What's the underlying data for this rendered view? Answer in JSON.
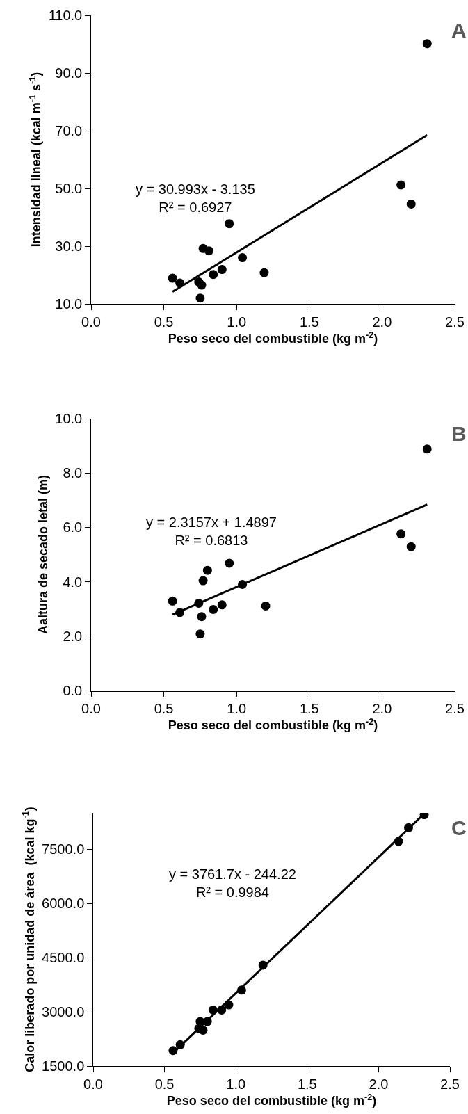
{
  "chart_data": [
    {
      "type": "scatter",
      "xlabel": "Peso seco del combustible (kg m$^{-2}$)",
      "ylabel": "Intensidad lineal (kcal m$^{-1}$ s$^{-1}$)",
      "xlim": [
        0,
        2.5
      ],
      "xticks": [
        {
          "value": 0,
          "label": "0.0"
        },
        {
          "value": 0.5,
          "label": "0.5"
        },
        {
          "value": 1,
          "label": "1.0"
        },
        {
          "value": 1.5,
          "label": "1.5"
        },
        {
          "value": 2,
          "label": "2.0"
        },
        {
          "value": 2.5,
          "label": "2.5"
        }
      ],
      "ylim": [
        10,
        110
      ],
      "yticks": [
        {
          "value": 10,
          "label": "10.0"
        },
        {
          "value": 30,
          "label": "30.0"
        },
        {
          "value": 50,
          "label": "50.0"
        },
        {
          "value": 70,
          "label": "70.0"
        },
        {
          "value": 90,
          "label": "90.0"
        },
        {
          "value": 110,
          "label": "110.0"
        }
      ],
      "x": [
        0.56,
        0.61,
        0.74,
        0.76,
        0.75,
        0.77,
        0.81,
        0.84,
        0.9,
        0.95,
        1.04,
        1.19,
        2.13,
        2.2,
        2.31
      ],
      "series": [
        {
          "marker": "circle",
          "color": "#000000",
          "values": [
            18.9,
            17.2,
            17.6,
            16.5,
            12.0,
            29.2,
            28.4,
            20.2,
            21.9,
            37.8,
            26.0,
            20.8,
            51.2,
            44.6,
            100.2
          ]
        },
        {
          "type": "line",
          "color": "#000000",
          "x": [
            0.56,
            2.31
          ],
          "values": [
            14.2,
            68.5
          ]
        }
      ],
      "annotations": [
        "A",
        "y = 30.993x - 3.135\nR² = 0.6927"
      ]
    },
    {
      "type": "scatter",
      "xlabel": "Peso seco del combustible (kg m$^{-2}$)",
      "ylabel": "Aaltura de secado letal (m)",
      "xlim": [
        0,
        2.5
      ],
      "xticks": [
        {
          "value": 0,
          "label": "0.0"
        },
        {
          "value": 0.5,
          "label": "0.5"
        },
        {
          "value": 1,
          "label": "1.0"
        },
        {
          "value": 1.5,
          "label": "1.5"
        },
        {
          "value": 2,
          "label": "2.0"
        },
        {
          "value": 2.5,
          "label": "2.5"
        }
      ],
      "ylim": [
        0,
        10
      ],
      "yticks": [
        {
          "value": 0,
          "label": "0.0"
        },
        {
          "value": 2,
          "label": "2.0"
        },
        {
          "value": 4,
          "label": "4.0"
        },
        {
          "value": 6,
          "label": "6.0"
        },
        {
          "value": 8,
          "label": "8.0"
        },
        {
          "value": 10,
          "label": "10.0"
        }
      ],
      "x": [
        0.56,
        0.61,
        0.74,
        0.76,
        0.75,
        0.77,
        0.8,
        0.84,
        0.9,
        0.95,
        1.04,
        1.2,
        2.13,
        2.2,
        2.31
      ],
      "series": [
        {
          "marker": "circle",
          "color": "#000000",
          "values": [
            3.29,
            2.87,
            3.21,
            2.72,
            2.08,
            4.04,
            4.42,
            2.98,
            3.15,
            4.68,
            3.9,
            3.11,
            5.76,
            5.29,
            8.88
          ]
        },
        {
          "type": "line",
          "color": "#000000",
          "x": [
            0.56,
            2.31
          ],
          "values": [
            2.79,
            6.84
          ]
        }
      ],
      "annotations": [
        "B",
        "y = 2.3157x + 1.4897\nR² = 0.6813"
      ]
    },
    {
      "type": "scatter",
      "xlabel": "Peso seco del combustible (kg m$^{-2}$)",
      "ylabel": "Calor liberado por unidad de área  (kcal kg$^{-1}$)",
      "xlim": [
        0,
        2.5
      ],
      "xticks": [
        {
          "value": 0,
          "label": "0.0"
        },
        {
          "value": 0.5,
          "label": "0.5"
        },
        {
          "value": 1,
          "label": "1.0"
        },
        {
          "value": 1.5,
          "label": "1.5"
        },
        {
          "value": 2,
          "label": "2.0"
        },
        {
          "value": 2.5,
          "label": "2.5"
        }
      ],
      "ylim": [
        1500,
        8500
      ],
      "yticks": [
        {
          "value": 1500,
          "label": "1500.0"
        },
        {
          "value": 3000,
          "label": "3000.0"
        },
        {
          "value": 4500,
          "label": "4500.0"
        },
        {
          "value": 6000,
          "label": "6000.0"
        },
        {
          "value": 7500,
          "label": "7500.0"
        }
      ],
      "x": [
        0.56,
        0.61,
        0.74,
        0.75,
        0.77,
        0.8,
        0.84,
        0.9,
        0.95,
        1.04,
        1.19,
        2.14,
        2.21,
        2.32
      ],
      "series": [
        {
          "marker": "circle",
          "color": "#000000",
          "values": [
            1930,
            2090,
            2540,
            2730,
            2490,
            2730,
            3050,
            3050,
            3190,
            3600,
            4290,
            7710,
            8090,
            8450
          ]
        },
        {
          "type": "line",
          "color": "#000000",
          "x": [
            0.56,
            2.32
          ],
          "values": [
            1860,
            8480
          ]
        }
      ],
      "annotations": [
        "C",
        "y = 3761.7x - 244.22\nR² = 0.9984"
      ]
    }
  ]
}
